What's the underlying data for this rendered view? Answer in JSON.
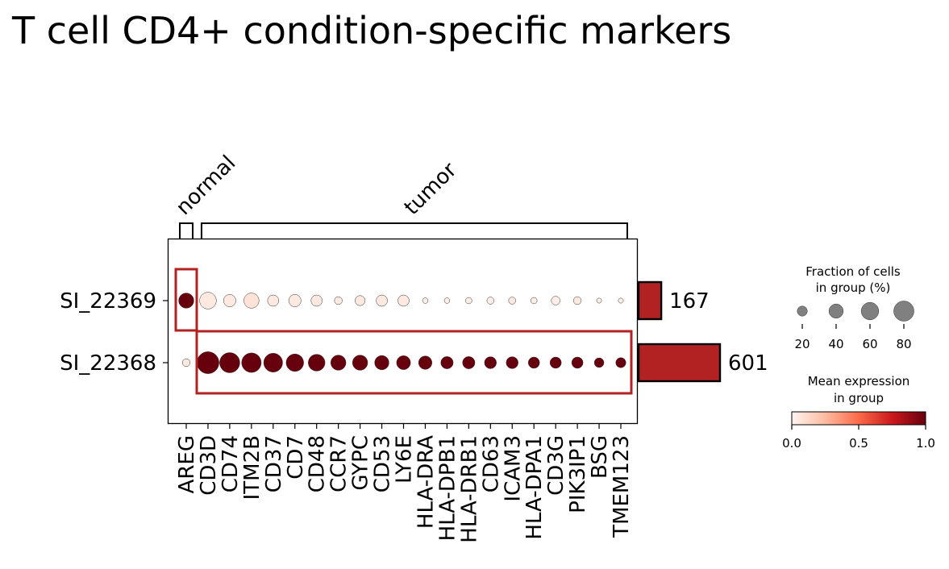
{
  "chart_data": {
    "type": "dotplot",
    "title": "T cell CD4+ condition-specific markers",
    "genes": [
      "AREG",
      "CD3D",
      "CD74",
      "ITM2B",
      "CD37",
      "CD7",
      "CD48",
      "CCR7",
      "GYPC",
      "CD53",
      "LY6E",
      "HLA-DRA",
      "HLA-DPB1",
      "HLA-DRB1",
      "CD63",
      "ICAM3",
      "HLA-DPA1",
      "CD3G",
      "PIK3IP1",
      "BSG",
      "TMEM123"
    ],
    "groups": [
      "SI_22369",
      "SI_22368"
    ],
    "gene_groups": [
      {
        "label": "normal",
        "start": 0,
        "end": 0
      },
      {
        "label": "tumor",
        "start": 1,
        "end": 20
      }
    ],
    "fraction": {
      "SI_22369": [
        45,
        55,
        30,
        45,
        25,
        30,
        25,
        12,
        20,
        25,
        25,
        6,
        6,
        8,
        10,
        10,
        8,
        15,
        12,
        5,
        5
      ],
      "SI_22368": [
        12,
        95,
        80,
        75,
        70,
        60,
        55,
        45,
        45,
        40,
        38,
        35,
        30,
        30,
        28,
        28,
        25,
        25,
        25,
        18,
        20
      ]
    },
    "mean_expression": {
      "SI_22369": [
        1.0,
        0.05,
        0.05,
        0.08,
        0.05,
        0.05,
        0.05,
        0.05,
        0.05,
        0.05,
        0.05,
        0.03,
        0.03,
        0.03,
        0.03,
        0.05,
        0.03,
        0.03,
        0.05,
        0.03,
        0.03
      ],
      "SI_22368": [
        0.05,
        1.0,
        1.0,
        1.0,
        1.0,
        1.0,
        1.0,
        1.0,
        1.0,
        1.0,
        1.0,
        1.0,
        1.0,
        1.0,
        1.0,
        1.0,
        1.0,
        1.0,
        1.0,
        1.0,
        1.0
      ]
    },
    "group_counts": {
      "SI_22369": 167,
      "SI_22368": 601
    },
    "count_max": 601,
    "size_legend": {
      "title_line1": "Fraction of cells",
      "title_line2": "in group (%)",
      "values": [
        20,
        40,
        60,
        80
      ]
    },
    "color_legend": {
      "title_line1": "Mean expression",
      "title_line2": "in group",
      "ticks": [
        0.0,
        0.5,
        1.0
      ],
      "tick_labels": [
        "0.0",
        "0.5",
        "1.0"
      ]
    },
    "colormap": "Reds",
    "highlight_color": "#b22222",
    "bar_color": "#b22222"
  }
}
